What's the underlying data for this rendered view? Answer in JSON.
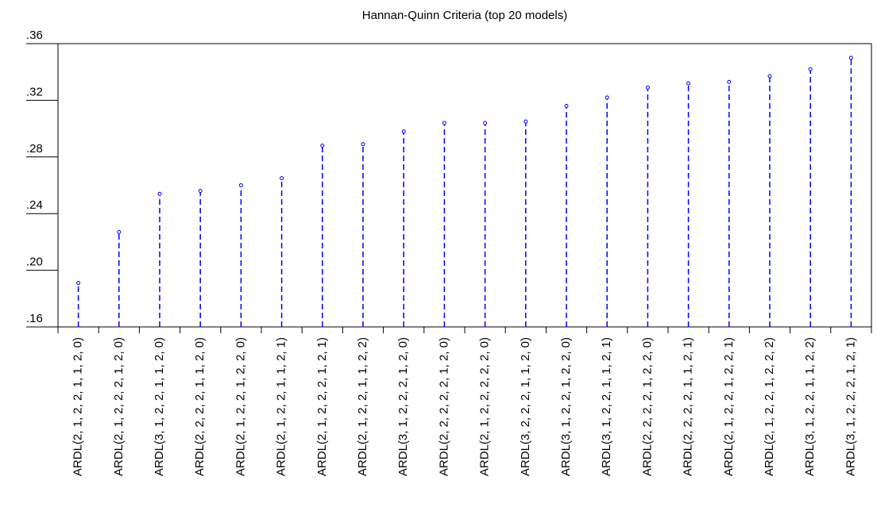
{
  "chart_data": {
    "type": "stem",
    "title": "Hannan-Quinn Criteria (top 20 models)",
    "categories": [
      "ARDL(2, 1, 2, 2, 1, 1, 2, 0)",
      "ARDL(2, 1, 2, 2, 2, 1, 2, 0)",
      "ARDL(3, 1, 2, 2, 1, 1, 2, 0)",
      "ARDL(2, 2, 2, 2, 1, 1, 2, 0)",
      "ARDL(2, 1, 2, 2, 1, 2, 2, 0)",
      "ARDL(2, 1, 2, 2, 1, 1, 2, 1)",
      "ARDL(2, 1, 2, 2, 2, 1, 2, 1)",
      "ARDL(2, 1, 2, 2, 1, 1, 2, 2)",
      "ARDL(3, 1, 2, 2, 2, 1, 2, 0)",
      "ARDL(2, 2, 2, 2, 2, 1, 2, 0)",
      "ARDL(2, 1, 2, 2, 2, 2, 2, 0)",
      "ARDL(3, 2, 2, 2, 1, 1, 2, 0)",
      "ARDL(3, 1, 2, 2, 1, 2, 2, 0)",
      "ARDL(3, 1, 2, 2, 1, 1, 2, 1)",
      "ARDL(2, 2, 2, 2, 1, 2, 2, 0)",
      "ARDL(2, 2, 2, 2, 1, 1, 2, 1)",
      "ARDL(2, 1, 2, 2, 1, 2, 2, 1)",
      "ARDL(2, 1, 2, 2, 1, 2, 2, 2)",
      "ARDL(3, 1, 2, 2, 1, 1, 2, 2)",
      "ARDL(3, 1, 2, 2, 2, 1, 2, 1)"
    ],
    "values": [
      0.191,
      0.227,
      0.254,
      0.256,
      0.26,
      0.265,
      0.288,
      0.289,
      0.298,
      0.304,
      0.304,
      0.305,
      0.316,
      0.322,
      0.329,
      0.332,
      0.333,
      0.337,
      0.342,
      0.35
    ],
    "color": "#0000ff",
    "ylim": [
      0.16,
      0.36
    ],
    "yticks": [
      {
        "value": 0.16,
        "label": ".16"
      },
      {
        "value": 0.2,
        "label": ".20"
      },
      {
        "value": 0.24,
        "label": ".24"
      },
      {
        "value": 0.28,
        "label": ".28"
      },
      {
        "value": 0.32,
        "label": ".32"
      },
      {
        "value": 0.36,
        "label": ".36"
      }
    ],
    "grid": false
  }
}
